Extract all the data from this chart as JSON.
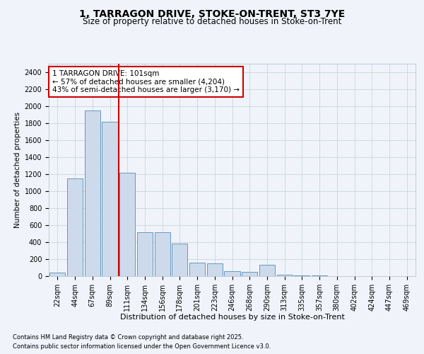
{
  "title": "1, TARRAGON DRIVE, STOKE-ON-TRENT, ST3 7YE",
  "subtitle": "Size of property relative to detached houses in Stoke-on-Trent",
  "xlabel": "Distribution of detached houses by size in Stoke-on-Trent",
  "ylabel": "Number of detached properties",
  "categories": [
    "22sqm",
    "44sqm",
    "67sqm",
    "89sqm",
    "111sqm",
    "134sqm",
    "156sqm",
    "178sqm",
    "201sqm",
    "223sqm",
    "246sqm",
    "268sqm",
    "290sqm",
    "313sqm",
    "335sqm",
    "357sqm",
    "380sqm",
    "402sqm",
    "424sqm",
    "447sqm",
    "469sqm"
  ],
  "values": [
    40,
    1150,
    1950,
    1820,
    1220,
    520,
    520,
    380,
    160,
    150,
    60,
    50,
    130,
    20,
    10,
    5,
    3,
    2,
    1,
    1,
    1
  ],
  "bar_color": "#cddaeb",
  "bar_edge_color": "#6699bb",
  "red_line_x": 3.5,
  "annotation_text": "1 TARRAGON DRIVE: 101sqm\n← 57% of detached houses are smaller (4,204)\n43% of semi-detached houses are larger (3,170) →",
  "annotation_box_color": "#ffffff",
  "annotation_box_edge_color": "#cc0000",
  "red_line_color": "#cc0000",
  "footer1": "Contains HM Land Registry data © Crown copyright and database right 2025.",
  "footer2": "Contains public sector information licensed under the Open Government Licence v3.0.",
  "bg_color": "#f0f4fa",
  "grid_color": "#c8d4e0",
  "ylim": [
    0,
    2500
  ],
  "yticks": [
    0,
    200,
    400,
    600,
    800,
    1000,
    1200,
    1400,
    1600,
    1800,
    2000,
    2200,
    2400
  ],
  "title_fontsize": 10,
  "subtitle_fontsize": 8.5,
  "xlabel_fontsize": 8,
  "ylabel_fontsize": 7.5,
  "tick_fontsize": 7,
  "footer_fontsize": 6,
  "annotation_fontsize": 7.5
}
